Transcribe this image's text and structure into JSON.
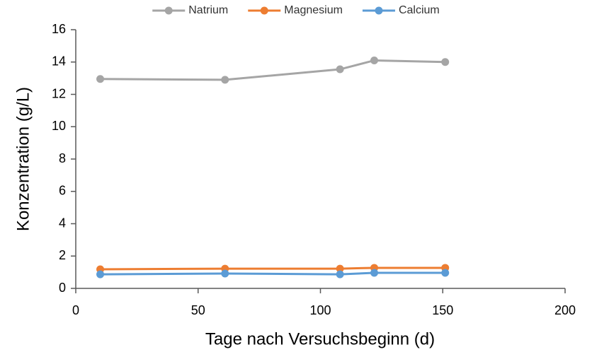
{
  "chart_data": {
    "type": "line",
    "x_label": "Tage nach Versuchsbeginn  (d)",
    "y_label": "Konzentration  (g/L)",
    "x": [
      10,
      61,
      108,
      122,
      151
    ],
    "series": [
      {
        "name": "Natrium",
        "color": "#a5a5a5",
        "values": [
          12.95,
          12.9,
          13.55,
          14.1,
          14.0
        ]
      },
      {
        "name": "Magnesium",
        "color": "#ed7d31",
        "values": [
          1.18,
          1.22,
          1.22,
          1.27,
          1.27
        ]
      },
      {
        "name": "Calcium",
        "color": "#5b9bd5",
        "values": [
          0.87,
          0.92,
          0.87,
          0.96,
          0.96
        ]
      }
    ],
    "xlim": [
      0,
      200
    ],
    "xticks": [
      0,
      50,
      100,
      150,
      200
    ],
    "ylim": [
      0,
      16
    ],
    "yticks": [
      0,
      2,
      4,
      6,
      8,
      10,
      12,
      14,
      16
    ],
    "grid": false,
    "legend": "top"
  }
}
